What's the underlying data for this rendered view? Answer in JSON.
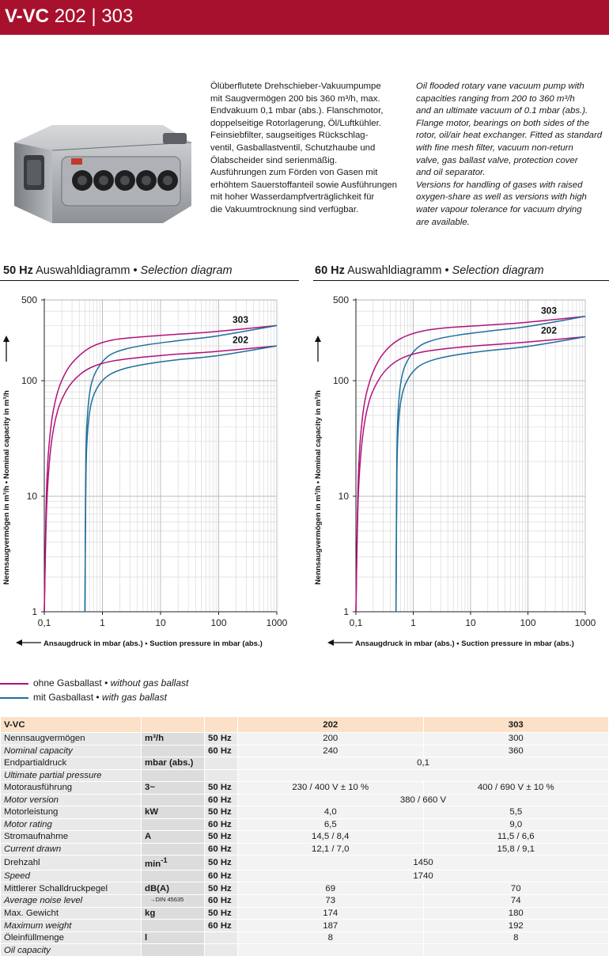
{
  "header": {
    "model": "V-VC",
    "variants": "202 | 303"
  },
  "description": {
    "de": [
      "Ölüberflutete Drehschieber-Vakuumpumpe",
      "mit Saugvermögen 200 bis 360 m³/h, max.",
      "Endvakuum 0,1 mbar (abs.). Flanschmotor,",
      "doppelseitige Rotorlagerung, Öl/Luftkühler.",
      "Feinsiebfilter, saugseitiges Rückschlag-",
      "ventil, Gasballastventil, Schutzhaube und",
      "Ölabscheider sind serienmäßig.",
      "Ausführungen zum Förden von Gasen mit",
      "erhöhtem Sauerstoffanteil sowie Ausführungen",
      "mit hoher Wasserdampfverträglichkeit für",
      "die Vakuumtrocknung sind verfügbar."
    ],
    "en": [
      "Oil flooded rotary vane vacuum pump with",
      "capacities ranging from 200 to 360 m³/h",
      "and an ultimate vacuum of 0.1 mbar (abs.).",
      "Flange motor, bearings on both sides of the",
      "rotor, oil/air heat exchanger. Fitted as standard",
      "with fine mesh filter, vacuum non-return",
      "valve, gas ballast valve, protection cover",
      "and oil separator.",
      "Versions for handling of gases with raised",
      "oxygen-share as well as versions with high",
      "water vapour tolerance for vacuum drying",
      "are available."
    ]
  },
  "image": {
    "icon": "vacuum-pump-photo"
  },
  "charts": {
    "left": {
      "hz": "50 Hz",
      "title_de": "Auswahldiagramm",
      "sep": "•",
      "title_en": "Selection diagram"
    },
    "right": {
      "hz": "60 Hz",
      "title_de": "Auswahldiagramm",
      "sep": "•",
      "title_en": "Selection diagram"
    }
  },
  "chart_data": [
    {
      "type": "line",
      "title": "50 Hz Auswahldiagramm • Selection diagram",
      "xlabel": "Ansaugdruck in mbar (abs.) • Suction pressure in mbar (abs.)",
      "ylabel": "Nennsaugvermögen in m³/h • Nominal capacity in m³/h",
      "xscale": "log",
      "yscale": "log",
      "xlim": [
        0.1,
        1000
      ],
      "ylim": [
        1,
        500
      ],
      "xticks": [
        "0,1",
        "1",
        "10",
        "100",
        "1000"
      ],
      "yticks": [
        "1",
        "10",
        "100",
        "500"
      ],
      "grid": true,
      "curve_labels": [
        "303",
        "202"
      ],
      "series": [
        {
          "name": "303",
          "ballast": "ohne Gasballast",
          "color": "#b0127a",
          "x": [
            0.1,
            0.11,
            0.13,
            0.17,
            0.25,
            0.4,
            0.7,
            1.5,
            4,
            15,
            80,
            1000
          ],
          "y": [
            1,
            12,
            40,
            80,
            125,
            165,
            200,
            225,
            238,
            250,
            265,
            300
          ]
        },
        {
          "name": "303",
          "ballast": "mit Gasballast",
          "color": "#1f6e9c",
          "x": [
            0.5,
            0.52,
            0.56,
            0.65,
            0.85,
            1.3,
            2.5,
            6,
            20,
            100,
            1000
          ],
          "y": [
            1,
            20,
            55,
            95,
            130,
            165,
            188,
            205,
            222,
            245,
            300
          ]
        },
        {
          "name": "202",
          "ballast": "ohne Gasballast",
          "color": "#b0127a",
          "x": [
            0.1,
            0.11,
            0.13,
            0.17,
            0.25,
            0.4,
            0.7,
            1.5,
            4,
            15,
            80,
            1000
          ],
          "y": [
            1,
            8,
            27,
            55,
            85,
            112,
            133,
            148,
            158,
            168,
            178,
            200
          ]
        },
        {
          "name": "202",
          "ballast": "mit Gasballast",
          "color": "#1f6e9c",
          "x": [
            0.5,
            0.52,
            0.56,
            0.65,
            0.85,
            1.3,
            2.5,
            6,
            20,
            100,
            1000
          ],
          "y": [
            1,
            14,
            38,
            65,
            90,
            112,
            128,
            140,
            152,
            165,
            200
          ]
        }
      ]
    },
    {
      "type": "line",
      "title": "60 Hz Auswahldiagramm • Selection diagram",
      "xlabel": "Ansaugdruck in mbar (abs.) • Suction pressure in mbar (abs.)",
      "ylabel": "Nennsaugvermögen in m³/h • Nominal capacity in m³/h",
      "xscale": "log",
      "yscale": "log",
      "xlim": [
        0.1,
        1000
      ],
      "ylim": [
        1,
        500
      ],
      "xticks": [
        "0,1",
        "1",
        "10",
        "100",
        "1000"
      ],
      "yticks": [
        "1",
        "10",
        "100",
        "500"
      ],
      "grid": true,
      "curve_labels": [
        "303",
        "202"
      ],
      "series": [
        {
          "name": "303",
          "ballast": "ohne Gasballast",
          "color": "#b0127a",
          "x": [
            0.1,
            0.11,
            0.13,
            0.17,
            0.25,
            0.4,
            0.7,
            1.5,
            4,
            15,
            80,
            1000
          ],
          "y": [
            1,
            14,
            48,
            95,
            150,
            200,
            240,
            270,
            288,
            300,
            318,
            360
          ]
        },
        {
          "name": "303",
          "ballast": "mit Gasballast",
          "color": "#1f6e9c",
          "x": [
            0.5,
            0.52,
            0.56,
            0.65,
            0.85,
            1.3,
            2.5,
            6,
            20,
            100,
            1000
          ],
          "y": [
            1,
            24,
            66,
            115,
            158,
            200,
            228,
            248,
            268,
            295,
            360
          ]
        },
        {
          "name": "202",
          "ballast": "ohne Gasballast",
          "color": "#b0127a",
          "x": [
            0.1,
            0.11,
            0.13,
            0.17,
            0.25,
            0.4,
            0.7,
            1.5,
            4,
            15,
            80,
            1000
          ],
          "y": [
            1,
            10,
            32,
            66,
            102,
            135,
            160,
            178,
            190,
            202,
            214,
            240
          ]
        },
        {
          "name": "202",
          "ballast": "mit Gasballast",
          "color": "#1f6e9c",
          "x": [
            0.5,
            0.52,
            0.56,
            0.65,
            0.85,
            1.3,
            2.5,
            6,
            20,
            100,
            1000
          ],
          "y": [
            1,
            17,
            46,
            78,
            108,
            135,
            154,
            168,
            182,
            198,
            240
          ]
        }
      ]
    }
  ],
  "axis": {
    "ylabel": "Nennsaugvermögen in m³/h • Nominal capacity in m³/h",
    "xlabel": "Ansaugdruck in mbar (abs.) • Suction pressure in mbar (abs.)"
  },
  "legend": {
    "without": {
      "de": "ohne Gasballast",
      "en": "without gas ballast",
      "color": "#b0127a"
    },
    "with": {
      "de": "mit Gasballast",
      "en": "with gas ballast",
      "color": "#1f6e9c"
    }
  },
  "table": {
    "header": [
      "V-VC",
      "202",
      "303"
    ],
    "rows": [
      {
        "label": "Nennsaugvermögen",
        "label_en": "Nominal capacity",
        "unit": "m³/h",
        "hz": [
          "50 Hz",
          "60 Hz"
        ],
        "v202": [
          "200",
          "240"
        ],
        "v303": [
          "300",
          "360"
        ]
      },
      {
        "label": "Endpartialdruck",
        "label_en": "Ultimate partial pressure",
        "unit": "mbar (abs.)",
        "hz": [
          "",
          ""
        ],
        "span": [
          "0,1",
          ""
        ]
      },
      {
        "label": "Motorausführung",
        "label_en": "Motor version",
        "unit": "3~",
        "hz": [
          "50 Hz",
          "60 Hz"
        ],
        "v202": [
          "230 / 400 V ± 10 %",
          ""
        ],
        "v303": [
          "400 / 690 V ± 10 %",
          ""
        ],
        "span2": "380 / 660 V"
      },
      {
        "label": "Motorleistung",
        "label_en": "Motor rating",
        "unit": "kW",
        "hz": [
          "50 Hz",
          "60 Hz"
        ],
        "v202": [
          "4,0",
          "6,5"
        ],
        "v303": [
          "5,5",
          "9,0"
        ]
      },
      {
        "label": "Stromaufnahme",
        "label_en": "Current drawn",
        "unit": "A",
        "hz": [
          "50 Hz",
          "60 Hz"
        ],
        "v202": [
          "14,5 / 8,4",
          "12,1 / 7,0"
        ],
        "v303": [
          "11,5 / 6,6",
          "15,8 / 9,1"
        ]
      },
      {
        "label": "Drehzahl",
        "label_en": "Speed",
        "unit": "min",
        "unit_sup": "-1",
        "hz": [
          "50 Hz",
          "60 Hz"
        ],
        "span": [
          "1450",
          "1740"
        ]
      },
      {
        "label": "Mittlerer Schalldruckpegel",
        "label_en": "Average noise level",
        "unit": "dB(A)",
        "unit_note": "→DIN 45635",
        "hz": [
          "50 Hz",
          "60 Hz"
        ],
        "v202": [
          "69",
          "73"
        ],
        "v303": [
          "70",
          "74"
        ]
      },
      {
        "label": "Max. Gewicht",
        "label_en": "Maximum weight",
        "unit": "kg",
        "hz": [
          "50 Hz",
          "60 Hz"
        ],
        "v202": [
          "174",
          "187"
        ],
        "v303": [
          "180",
          "192"
        ]
      },
      {
        "label": "Öleinfüllmenge",
        "label_en": "Oil capacity",
        "unit": "l",
        "hz": [
          "",
          ""
        ],
        "v202": [
          "8",
          ""
        ],
        "v303": [
          "8",
          ""
        ]
      }
    ]
  }
}
